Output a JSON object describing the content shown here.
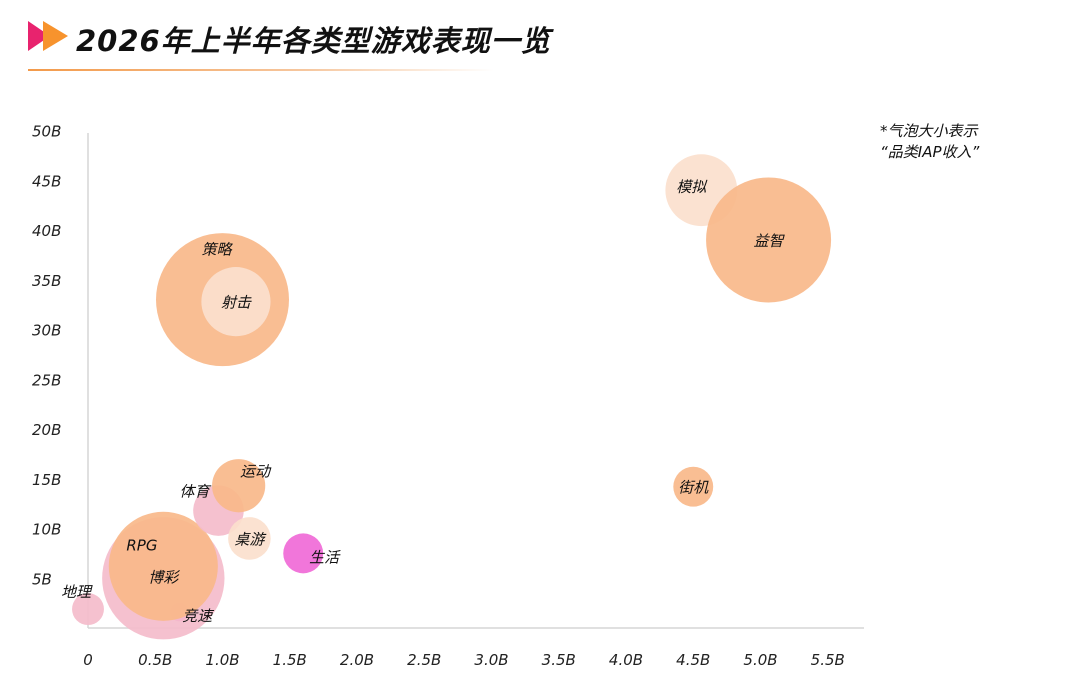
{
  "header": {
    "title": "2026年上半年各类型游戏表现一览"
  },
  "note": {
    "line1": "*气泡大小表示",
    "line2": "“品类IAP收入”"
  },
  "colors": {
    "logo_pink": "#e8236e",
    "logo_orange": "#f7932d",
    "bubble_orange": "#f8b98a",
    "bubble_light": "#fbe0cd",
    "bubble_pink": "#f4bccb",
    "bubble_magenta": "#f06ad7",
    "axis": "#d6d6d6"
  },
  "chart_data": {
    "type": "scatter",
    "title": "2026年上半年各类型游戏表现一览",
    "xlabel": "",
    "ylabel": "",
    "xlim": [
      0,
      5.8
    ],
    "ylim": [
      0,
      50
    ],
    "x_ticks": [
      "0",
      "0.5B",
      "1.0B",
      "1.5B",
      "2.0B",
      "2.5B",
      "3.0B",
      "3.5B",
      "4.0B",
      "4.5B",
      "5.0B",
      "5.5B"
    ],
    "x_tick_values": [
      0,
      0.5,
      1.0,
      1.5,
      2.0,
      2.5,
      3.0,
      3.5,
      4.0,
      4.5,
      5.0,
      5.5
    ],
    "y_ticks": [
      "5B",
      "10B",
      "15B",
      "20B",
      "25B",
      "30B",
      "35B",
      "40B",
      "45B",
      "50B"
    ],
    "y_tick_values": [
      5,
      10,
      15,
      20,
      25,
      30,
      35,
      40,
      45,
      50
    ],
    "size_note": "*气泡大小表示“品类IAP收入”",
    "points": [
      {
        "label": "地理",
        "x": 0.0,
        "y": 1.9,
        "size": 1.2,
        "color": "#f4bccb",
        "label_pos": "upper-left"
      },
      {
        "label": "竞速",
        "x": 0.68,
        "y": 1.6,
        "size": 0.7,
        "color": "#f06ad7",
        "label_pos": "right"
      },
      {
        "label": "RPG",
        "x": 0.56,
        "y": 5.0,
        "size": 4.6,
        "color": "#f4bccb",
        "label_pos": "upper-left"
      },
      {
        "label": "博彩",
        "x": 0.56,
        "y": 6.2,
        "size": 4.1,
        "color": "#f8b98a",
        "label_pos": "center"
      },
      {
        "label": "体育",
        "x": 0.97,
        "y": 11.8,
        "size": 1.9,
        "color": "#f4bccb",
        "label_pos": "upper-left"
      },
      {
        "label": "运动",
        "x": 1.12,
        "y": 14.3,
        "size": 2.0,
        "color": "#f8b98a",
        "label_pos": "upper-right"
      },
      {
        "label": "桌游",
        "x": 1.2,
        "y": 9.0,
        "size": 1.6,
        "color": "#fbe0cd",
        "label_pos": "center"
      },
      {
        "label": "生活",
        "x": 1.6,
        "y": 7.5,
        "size": 1.5,
        "color": "#f06ad7",
        "label_pos": "right"
      },
      {
        "label": "策略",
        "x": 1.0,
        "y": 33.0,
        "size": 5.0,
        "color": "#f8b98a",
        "label_pos": "upper-left"
      },
      {
        "label": "射击",
        "x": 1.1,
        "y": 32.8,
        "size": 2.6,
        "color": "#fbe0cd",
        "label_pos": "center"
      },
      {
        "label": "模拟",
        "x": 4.56,
        "y": 44.0,
        "size": 2.7,
        "color": "#fbe0cd",
        "label_pos": "left"
      },
      {
        "label": "益智",
        "x": 5.06,
        "y": 39.0,
        "size": 4.7,
        "color": "#f8b98a",
        "label_pos": "center"
      },
      {
        "label": "街机",
        "x": 4.5,
        "y": 14.2,
        "size": 1.5,
        "color": "#f8b98a",
        "label_pos": "center"
      }
    ]
  }
}
